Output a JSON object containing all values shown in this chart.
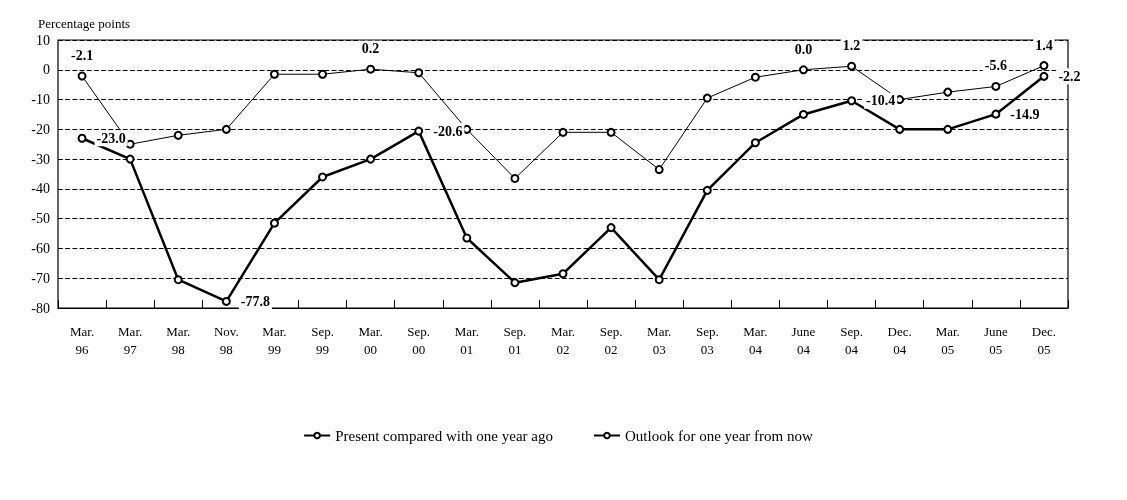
{
  "chart_data": {
    "type": "line",
    "ylabel": "Percentage points",
    "categories": [
      "Mar.\n96",
      "Mar.\n97",
      "Mar.\n98",
      "Nov.\n98",
      "Mar.\n99",
      "Sep.\n99",
      "Mar.\n00",
      "Sep.\n00",
      "Mar.\n01",
      "Sep.\n01",
      "Mar.\n02",
      "Sep.\n02",
      "Mar.\n03",
      "Sep.\n03",
      "Mar.\n04",
      "June\n04",
      "Sep.\n04",
      "Dec.\n04",
      "Mar.\n05",
      "June\n05",
      "Dec.\n05"
    ],
    "series": [
      {
        "name": "Present compared with one year ago",
        "color": "#000000",
        "values": [
          -23.0,
          -30,
          -70.5,
          -77.8,
          -51.5,
          -36,
          -30,
          -20.6,
          -56.5,
          -71.5,
          -68.5,
          -53,
          -70.5,
          -40.5,
          -24.5,
          -15,
          -10.4,
          -20,
          -20,
          -14.9,
          -2.2
        ],
        "value_labels": [
          "-23.0",
          null,
          null,
          "-77.8",
          null,
          null,
          null,
          "-20.6",
          null,
          null,
          null,
          null,
          null,
          null,
          null,
          null,
          "-10.4",
          null,
          null,
          "-14.9",
          "-2.2"
        ]
      },
      {
        "name": "Outlook for one year from now",
        "color": "#000000",
        "values": [
          -2.1,
          -25,
          -22,
          -20,
          -1.5,
          -1.5,
          0.2,
          -1,
          -20,
          -36.5,
          -21,
          -21,
          -33.5,
          -9.5,
          -2.5,
          0.0,
          1.2,
          -10,
          -7.5,
          -5.6,
          1.4
        ],
        "value_labels": [
          "-2.1",
          null,
          null,
          null,
          null,
          null,
          "0.2",
          null,
          null,
          null,
          null,
          null,
          null,
          null,
          null,
          "0.0",
          "1.2",
          null,
          null,
          "-5.6",
          "1.4"
        ]
      }
    ],
    "ylim": [
      -80,
      10
    ],
    "yticks": [
      -80,
      -70,
      -60,
      -50,
      -40,
      -30,
      -20,
      -10,
      0,
      10
    ],
    "grid": "y",
    "legend": "bottom",
    "marker": "circle",
    "line_style": "solid"
  }
}
